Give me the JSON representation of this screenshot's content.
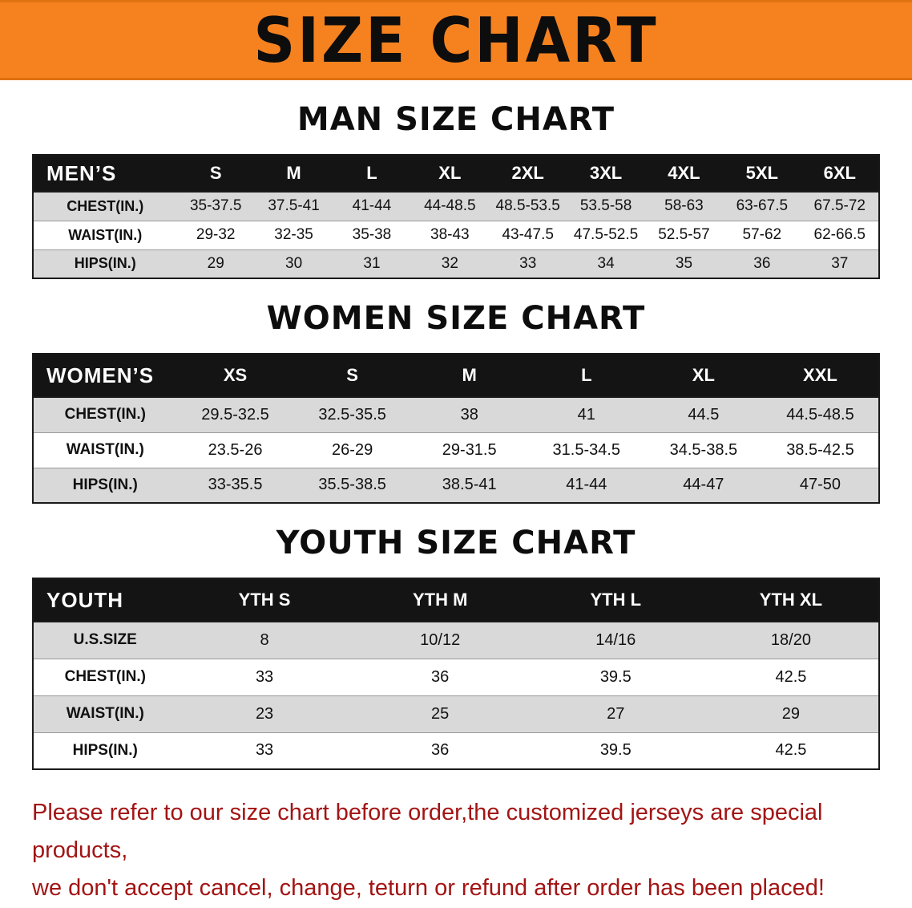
{
  "banner": {
    "title": "SIZE CHART"
  },
  "sections": [
    {
      "heading": "MAN SIZE CHART",
      "table_label": "MEN’S",
      "columns": [
        "S",
        "M",
        "L",
        "XL",
        "2XL",
        "3XL",
        "4XL",
        "5XL",
        "6XL"
      ],
      "rows": [
        {
          "label": "CHEST(IN.)",
          "values": [
            "35-37.5",
            "37.5-41",
            "41-44",
            "44-48.5",
            "48.5-53.5",
            "53.5-58",
            "58-63",
            "63-67.5",
            "67.5-72"
          ]
        },
        {
          "label": "WAIST(IN.)",
          "values": [
            "29-32",
            "32-35",
            "35-38",
            "38-43",
            "43-47.5",
            "47.5-52.5",
            "52.5-57",
            "57-62",
            "62-66.5"
          ]
        },
        {
          "label": "HIPS(IN.)",
          "values": [
            "29",
            "30",
            "31",
            "32",
            "33",
            "34",
            "35",
            "36",
            "37"
          ]
        }
      ]
    },
    {
      "heading": "WOMEN SIZE CHART",
      "table_label": "WOMEN’S",
      "columns": [
        "XS",
        "S",
        "M",
        "L",
        "XL",
        "XXL"
      ],
      "rows": [
        {
          "label": "CHEST(IN.)",
          "values": [
            "29.5-32.5",
            "32.5-35.5",
            "38",
            "41",
            "44.5",
            "44.5-48.5"
          ]
        },
        {
          "label": "WAIST(IN.)",
          "values": [
            "23.5-26",
            "26-29",
            "29-31.5",
            "31.5-34.5",
            "34.5-38.5",
            "38.5-42.5"
          ]
        },
        {
          "label": "HIPS(IN.)",
          "values": [
            "33-35.5",
            "35.5-38.5",
            "38.5-41",
            "41-44",
            "44-47",
            "47-50"
          ]
        }
      ]
    },
    {
      "heading": "YOUTH SIZE CHART",
      "table_label": "YOUTH",
      "columns": [
        "YTH S",
        "YTH M",
        "YTH L",
        "YTH XL"
      ],
      "rows": [
        {
          "label": "U.S.SIZE",
          "values": [
            "8",
            "10/12",
            "14/16",
            "18/20"
          ]
        },
        {
          "label": "CHEST(IN.)",
          "values": [
            "33",
            "36",
            "39.5",
            "42.5"
          ]
        },
        {
          "label": "WAIST(IN.)",
          "values": [
            "23",
            "25",
            "27",
            "29"
          ]
        },
        {
          "label": "HIPS(IN.)",
          "values": [
            "33",
            "36",
            "39.5",
            "42.5"
          ]
        }
      ]
    }
  ],
  "footer": {
    "line1": "Please refer to our size chart before order,the customized jerseys are special products,",
    "line2": "we don't accept cancel, change, teturn or refund after order has been placed!"
  },
  "colors": {
    "banner_bg": "#F5821F",
    "header_bg": "#141414",
    "row_alt_bg": "#d9d9d9",
    "footer_text": "#A31414"
  }
}
